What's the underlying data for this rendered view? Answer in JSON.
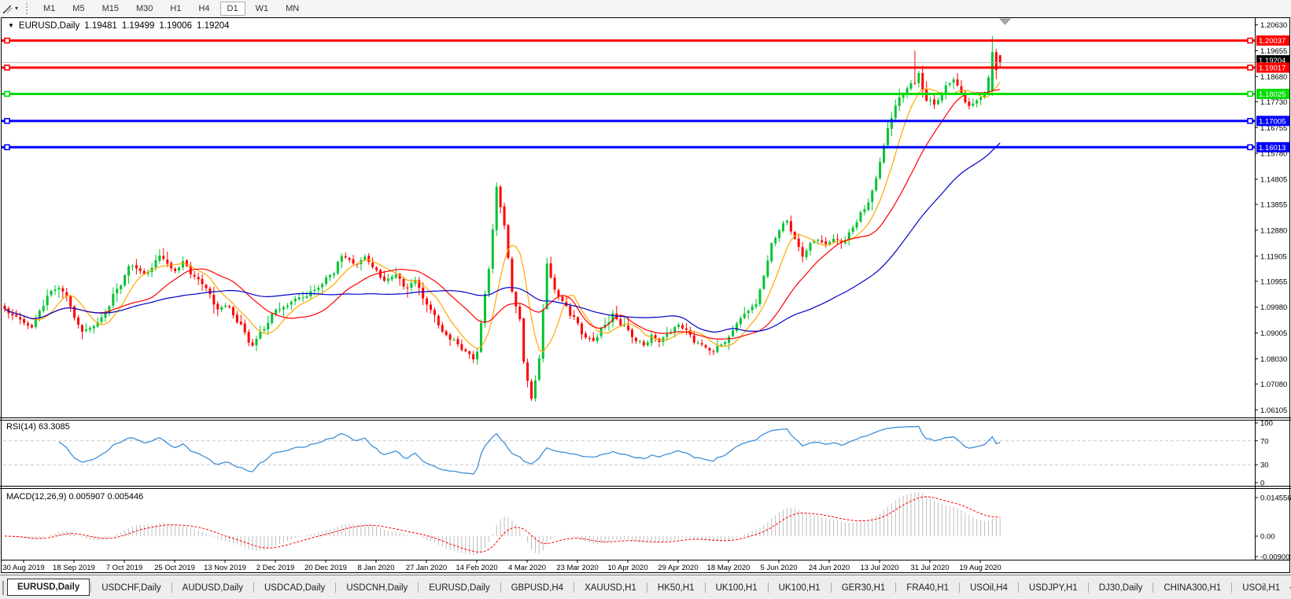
{
  "toolbar": {
    "timeframes": [
      "M1",
      "M5",
      "M15",
      "M30",
      "H1",
      "H4",
      "D1",
      "W1",
      "MN"
    ],
    "active_timeframe": "D1"
  },
  "chart_header": {
    "symbol_label": "EURUSD,Daily",
    "open": "1.19481",
    "high": "1.19499",
    "low": "1.19006",
    "close": "1.19204"
  },
  "rsi_panel": {
    "label": "RSI(14) 63.3085",
    "ticks": [
      "100",
      "70",
      "30",
      "0"
    ]
  },
  "macd_panel": {
    "label": "MACD(12,26,9) 0.005907 0.005446",
    "ticks": [
      "0.014556",
      "0.00",
      "-0.009001"
    ]
  },
  "tabs": {
    "items": [
      "EURUSD,Daily",
      "USDCHF,Daily",
      "AUDUSD,Daily",
      "USDCAD,Daily",
      "USDCNH,Daily",
      "EURUSD,Daily",
      "GBPUSD,H4",
      "XAUUSD,H1",
      "HK50,H1",
      "UK100,H1",
      "UK100,H1",
      "GER30,H1",
      "FRA40,H1",
      "USOil,H4",
      "USDJPY,H1",
      "DJ30,Daily",
      "CHINA300,H1",
      "USOil,H1"
    ],
    "active_index": 0,
    "scroll_left": "◂",
    "scroll_right": "▸"
  },
  "chart_data": {
    "type": "candlestick",
    "title": "EURUSD,Daily",
    "ohlc": {
      "open": 1.19481,
      "high": 1.19499,
      "low": 1.19006,
      "close": 1.19204
    },
    "x_labels": [
      "30 Aug 2019",
      "18 Sep 2019",
      "7 Oct 2019",
      "25 Oct 2019",
      "13 Nov 2019",
      "2 Dec 2019",
      "20 Dec 2019",
      "8 Jan 2020",
      "27 Jan 2020",
      "14 Feb 2020",
      "4 Mar 2020",
      "23 Mar 2020",
      "10 Apr 2020",
      "29 Apr 2020",
      "18 May 2020",
      "5 Jun 2020",
      "24 Jun 2020",
      "13 Jul 2020",
      "31 Jul 2020",
      "19 Aug 2020"
    ],
    "y_ticks": [
      "1.20630",
      "1.19655",
      "1.18680",
      "1.17730",
      "1.16755",
      "1.15780",
      "1.14805",
      "1.13855",
      "1.12880",
      "1.11905",
      "1.10955",
      "1.09980",
      "1.09005",
      "1.08030",
      "1.07080",
      "1.06105"
    ],
    "price_lines": [
      {
        "price": 1.20037,
        "label": "1.20037",
        "color": "#FF0000"
      },
      {
        "price": 1.19017,
        "label": "1.19017",
        "color": "#FF0000"
      },
      {
        "price": 1.18025,
        "label": "1.18025",
        "color": "#00DD00"
      },
      {
        "price": 1.17005,
        "label": "1.17005",
        "color": "#0000FF"
      },
      {
        "price": 1.16013,
        "label": "1.16013",
        "color": "#0000FF"
      }
    ],
    "current_price": {
      "value": 1.19204,
      "label": "1.19204"
    },
    "num_candles": 258,
    "close_path_anchors": [
      [
        0,
        1.0995
      ],
      [
        2,
        1.097
      ],
      [
        5,
        1.094
      ],
      [
        7,
        1.0926
      ],
      [
        9,
        1.099
      ],
      [
        12,
        1.1055
      ],
      [
        14,
        1.1075
      ],
      [
        16,
        1.104
      ],
      [
        18,
        1.096
      ],
      [
        20,
        1.0895
      ],
      [
        23,
        1.093
      ],
      [
        26,
        1.0985
      ],
      [
        29,
        1.106
      ],
      [
        33,
        1.116
      ],
      [
        36,
        1.112
      ],
      [
        40,
        1.1185
      ],
      [
        44,
        1.113
      ],
      [
        46,
        1.1175
      ],
      [
        48,
        1.1125
      ],
      [
        51,
        1.108
      ],
      [
        55,
        1.1
      ],
      [
        58,
        1.099
      ],
      [
        61,
        1.092
      ],
      [
        64,
        1.0855
      ],
      [
        67,
        1.092
      ],
      [
        70,
        1.098
      ],
      [
        73,
        1.1005
      ],
      [
        76,
        1.103
      ],
      [
        80,
        1.106
      ],
      [
        84,
        1.112
      ],
      [
        87,
        1.119
      ],
      [
        90,
        1.116
      ],
      [
        93,
        1.1175
      ],
      [
        96,
        1.113
      ],
      [
        98,
        1.1095
      ],
      [
        101,
        1.112
      ],
      [
        104,
        1.1075
      ],
      [
        106,
        1.109
      ],
      [
        108,
        1.103
      ],
      [
        110,
        1.098
      ],
      [
        113,
        1.0905
      ],
      [
        116,
        1.087
      ],
      [
        119,
        1.083
      ],
      [
        121,
        1.0808
      ],
      [
        122,
        1.0835
      ],
      [
        123,
        1.093
      ],
      [
        125,
        1.114
      ],
      [
        127,
        1.144
      ],
      [
        129,
        1.13
      ],
      [
        131,
        1.107
      ],
      [
        133,
        1.095
      ],
      [
        134,
        1.079
      ],
      [
        136,
        1.066
      ],
      [
        138,
        1.08
      ],
      [
        140,
        1.115
      ],
      [
        142,
        1.107
      ],
      [
        144,
        1.102
      ],
      [
        147,
        1.095
      ],
      [
        150,
        1.088
      ],
      [
        152,
        1.0865
      ],
      [
        155,
        1.0935
      ],
      [
        157,
        1.0975
      ],
      [
        159,
        1.093
      ],
      [
        161,
        1.091
      ],
      [
        163,
        1.087
      ],
      [
        165,
        1.086
      ],
      [
        167,
        1.0895
      ],
      [
        169,
        1.087
      ],
      [
        172,
        1.0905
      ],
      [
        174,
        1.094
      ],
      [
        176,
        1.0905
      ],
      [
        179,
        1.0865
      ],
      [
        181,
        1.084
      ],
      [
        183,
        1.0825
      ],
      [
        185,
        1.0855
      ],
      [
        187,
        1.089
      ],
      [
        189,
        1.093
      ],
      [
        191,
        1.097
      ],
      [
        194,
        1.102
      ],
      [
        196,
        1.112
      ],
      [
        198,
        1.125
      ],
      [
        200,
        1.129
      ],
      [
        202,
        1.132
      ],
      [
        204,
        1.126
      ],
      [
        206,
        1.119
      ],
      [
        208,
        1.123
      ],
      [
        210,
        1.126
      ],
      [
        212,
        1.122
      ],
      [
        214,
        1.1245
      ],
      [
        216,
        1.123
      ],
      [
        218,
        1.1275
      ],
      [
        220,
        1.132
      ],
      [
        221,
        1.1355
      ],
      [
        223,
        1.14
      ],
      [
        225,
        1.148
      ],
      [
        227,
        1.16
      ],
      [
        228,
        1.1668
      ],
      [
        229,
        1.171
      ],
      [
        231,
        1.179
      ],
      [
        233,
        1.183
      ],
      [
        234,
        1.185
      ],
      [
        235,
        1.184
      ],
      [
        236,
        1.187
      ],
      [
        237,
        1.182
      ],
      [
        238,
        1.178
      ],
      [
        240,
        1.1755
      ],
      [
        242,
        1.18
      ],
      [
        243,
        1.183
      ],
      [
        245,
        1.1865
      ],
      [
        246,
        1.183
      ],
      [
        248,
        1.1775
      ],
      [
        249,
        1.176
      ],
      [
        251,
        1.1785
      ],
      [
        253,
        1.181
      ],
      [
        254,
        1.187
      ],
      [
        255,
        1.196
      ],
      [
        256,
        1.1892
      ],
      [
        257,
        1.19204
      ]
    ],
    "candle_overrides": [
      {
        "i": 235,
        "h": 1.1966
      },
      {
        "i": 255,
        "o": 1.1812,
        "h": 1.2021,
        "l": 1.1795,
        "c": 1.196
      },
      {
        "i": 256,
        "o": 1.196,
        "h": 1.1972,
        "l": 1.1858,
        "c": 1.1892
      },
      {
        "i": 257,
        "o": 1.19481,
        "h": 1.19499,
        "l": 1.19006,
        "c": 1.19204
      }
    ],
    "moving_averages": [
      {
        "period": 8,
        "color": "#FFA800"
      },
      {
        "period": 21,
        "color": "#FF0000"
      },
      {
        "period": 50,
        "color": "#0000C8"
      }
    ],
    "indicators": [
      {
        "name": "RSI",
        "params": "14",
        "value": 63.3085,
        "levels": [
          70,
          30
        ],
        "range": [
          0,
          100
        ],
        "ticks": [
          100,
          70,
          30,
          0
        ]
      },
      {
        "name": "MACD",
        "params": "12,26,9",
        "values": [
          0.005907,
          0.005446
        ],
        "axis_ticks": [
          0.014556,
          0.0,
          -0.009001
        ]
      }
    ],
    "colors": {
      "bull": "#00C432",
      "bear": "#FF0000",
      "rsi_line": "#3E8FD8",
      "level_dash": "#C8C8C8",
      "macd_histogram": "#BDBDBD",
      "macd_signal": "#FF0000",
      "current_price_line": "#B8B8B8",
      "shift_marker": "#A8A8A8"
    }
  }
}
